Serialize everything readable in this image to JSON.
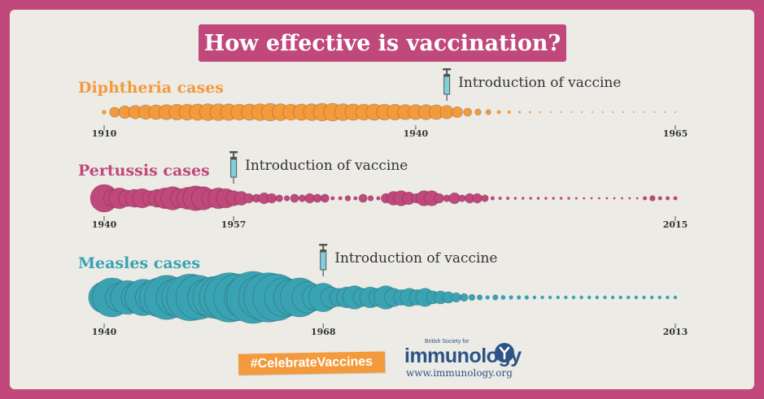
{
  "title": "How effective is vaccination?",
  "hashtag": "#CelebrateVaccines",
  "logo": {
    "org_small": "British Society for",
    "wordmark": "immunology",
    "url": "www.immunology.org"
  },
  "colors": {
    "background": "#c0487a",
    "card": "#ecebe6",
    "diphtheria": "#f39a3c",
    "pertussis": "#c0487a",
    "measles": "#3aa3b3",
    "hashtag": "#f39a3c",
    "brand": "#2c5486"
  },
  "chart_data": [
    {
      "type": "scatter",
      "title": "Diphtheria cases",
      "annotation": "Introduction of vaccine",
      "vaccine_year": 1943,
      "xlim": [
        1910,
        1965
      ],
      "ticks": [
        "1910",
        "1940",
        "1965"
      ],
      "tick_values": [
        1910,
        1940,
        1965
      ],
      "x": [
        1910,
        1911,
        1912,
        1913,
        1914,
        1915,
        1916,
        1917,
        1918,
        1919,
        1920,
        1921,
        1922,
        1923,
        1924,
        1925,
        1926,
        1927,
        1928,
        1929,
        1930,
        1931,
        1932,
        1933,
        1934,
        1935,
        1936,
        1937,
        1938,
        1939,
        1940,
        1941,
        1942,
        1943,
        1944,
        1945,
        1946,
        1947,
        1948,
        1949,
        1950,
        1951,
        1952,
        1953,
        1954,
        1955,
        1956,
        1957,
        1958,
        1959,
        1960,
        1961,
        1962,
        1963,
        1964,
        1965
      ],
      "relative_size": [
        0.25,
        0.55,
        0.7,
        0.75,
        0.8,
        0.82,
        0.85,
        0.88,
        0.9,
        0.92,
        0.95,
        0.95,
        0.93,
        0.9,
        0.92,
        0.95,
        0.98,
        0.95,
        0.9,
        0.92,
        0.95,
        0.98,
        1.0,
        0.95,
        0.92,
        0.9,
        0.92,
        0.9,
        0.88,
        0.85,
        0.85,
        0.85,
        0.82,
        0.75,
        0.6,
        0.45,
        0.35,
        0.28,
        0.22,
        0.18,
        0.14,
        0.12,
        0.1,
        0.08,
        0.07,
        0.06,
        0.05,
        0.05,
        0.04,
        0.04,
        0.04,
        0.03,
        0.03,
        0.03,
        0.03,
        0.03
      ]
    },
    {
      "type": "scatter",
      "title": "Pertussis cases",
      "annotation": "Introduction of vaccine",
      "vaccine_year": 1957,
      "xlim": [
        1940,
        2015
      ],
      "ticks": [
        "1940",
        "1957",
        "2015"
      ],
      "tick_values": [
        1940,
        1957,
        2015
      ],
      "x": [
        1940,
        1941,
        1942,
        1943,
        1944,
        1945,
        1946,
        1947,
        1948,
        1949,
        1950,
        1951,
        1952,
        1953,
        1954,
        1955,
        1956,
        1957,
        1958,
        1959,
        1960,
        1961,
        1962,
        1963,
        1964,
        1965,
        1966,
        1967,
        1968,
        1969,
        1970,
        1971,
        1972,
        1973,
        1974,
        1975,
        1976,
        1977,
        1978,
        1979,
        1980,
        1981,
        1982,
        1983,
        1984,
        1985,
        1986,
        1987,
        1988,
        1989,
        1990,
        1991,
        1992,
        1993,
        1994,
        1995,
        1996,
        1997,
        1998,
        1999,
        2000,
        2001,
        2002,
        2003,
        2004,
        2005,
        2006,
        2007,
        2008,
        2009,
        2010,
        2011,
        2012,
        2013,
        2014,
        2015
      ],
      "relative_size": [
        1.0,
        0.6,
        0.75,
        0.6,
        0.65,
        0.7,
        0.55,
        0.65,
        0.75,
        0.85,
        0.7,
        0.8,
        0.9,
        0.85,
        0.65,
        0.75,
        0.7,
        0.55,
        0.5,
        0.35,
        0.3,
        0.4,
        0.35,
        0.25,
        0.2,
        0.3,
        0.25,
        0.35,
        0.3,
        0.3,
        0.15,
        0.15,
        0.2,
        0.15,
        0.3,
        0.2,
        0.15,
        0.35,
        0.5,
        0.55,
        0.45,
        0.35,
        0.55,
        0.55,
        0.35,
        0.25,
        0.4,
        0.25,
        0.35,
        0.35,
        0.25,
        0.15,
        0.12,
        0.12,
        0.1,
        0.1,
        0.1,
        0.1,
        0.1,
        0.1,
        0.1,
        0.1,
        0.09,
        0.08,
        0.08,
        0.08,
        0.08,
        0.08,
        0.08,
        0.08,
        0.08,
        0.15,
        0.2,
        0.15,
        0.15,
        0.15
      ]
    },
    {
      "type": "scatter",
      "title": "Measles cases",
      "annotation": "Introduction of vaccine",
      "vaccine_year": 1968,
      "xlim": [
        1940,
        2013
      ],
      "ticks": [
        "1940",
        "1968",
        "2013"
      ],
      "tick_values": [
        1940,
        1968,
        2013
      ],
      "x": [
        1940,
        1941,
        1942,
        1943,
        1944,
        1945,
        1946,
        1947,
        1948,
        1949,
        1950,
        1951,
        1952,
        1953,
        1954,
        1955,
        1956,
        1957,
        1958,
        1959,
        1960,
        1961,
        1962,
        1963,
        1964,
        1965,
        1966,
        1967,
        1968,
        1969,
        1970,
        1971,
        1972,
        1973,
        1974,
        1975,
        1976,
        1977,
        1978,
        1979,
        1980,
        1981,
        1982,
        1983,
        1984,
        1985,
        1986,
        1987,
        1988,
        1989,
        1990,
        1991,
        1992,
        1993,
        1994,
        1995,
        1996,
        1997,
        1998,
        1999,
        2000,
        2001,
        2002,
        2003,
        2004,
        2005,
        2006,
        2007,
        2008,
        2009,
        2010,
        2011,
        2012,
        2013
      ],
      "relative_size": [
        0.6,
        0.75,
        0.55,
        0.65,
        0.55,
        0.7,
        0.6,
        0.75,
        0.85,
        0.7,
        0.8,
        0.9,
        0.85,
        0.7,
        0.8,
        0.85,
        0.95,
        0.9,
        0.8,
        1.0,
        0.85,
        0.95,
        0.9,
        0.75,
        0.7,
        0.75,
        0.6,
        0.5,
        0.55,
        0.4,
        0.35,
        0.4,
        0.45,
        0.35,
        0.4,
        0.35,
        0.45,
        0.35,
        0.3,
        0.35,
        0.3,
        0.35,
        0.25,
        0.25,
        0.22,
        0.18,
        0.15,
        0.12,
        0.1,
        0.08,
        0.1,
        0.09,
        0.08,
        0.08,
        0.08,
        0.07,
        0.07,
        0.07,
        0.07,
        0.07,
        0.07,
        0.07,
        0.07,
        0.07,
        0.07,
        0.07,
        0.07,
        0.07,
        0.07,
        0.07,
        0.07,
        0.07,
        0.07,
        0.07
      ]
    }
  ]
}
